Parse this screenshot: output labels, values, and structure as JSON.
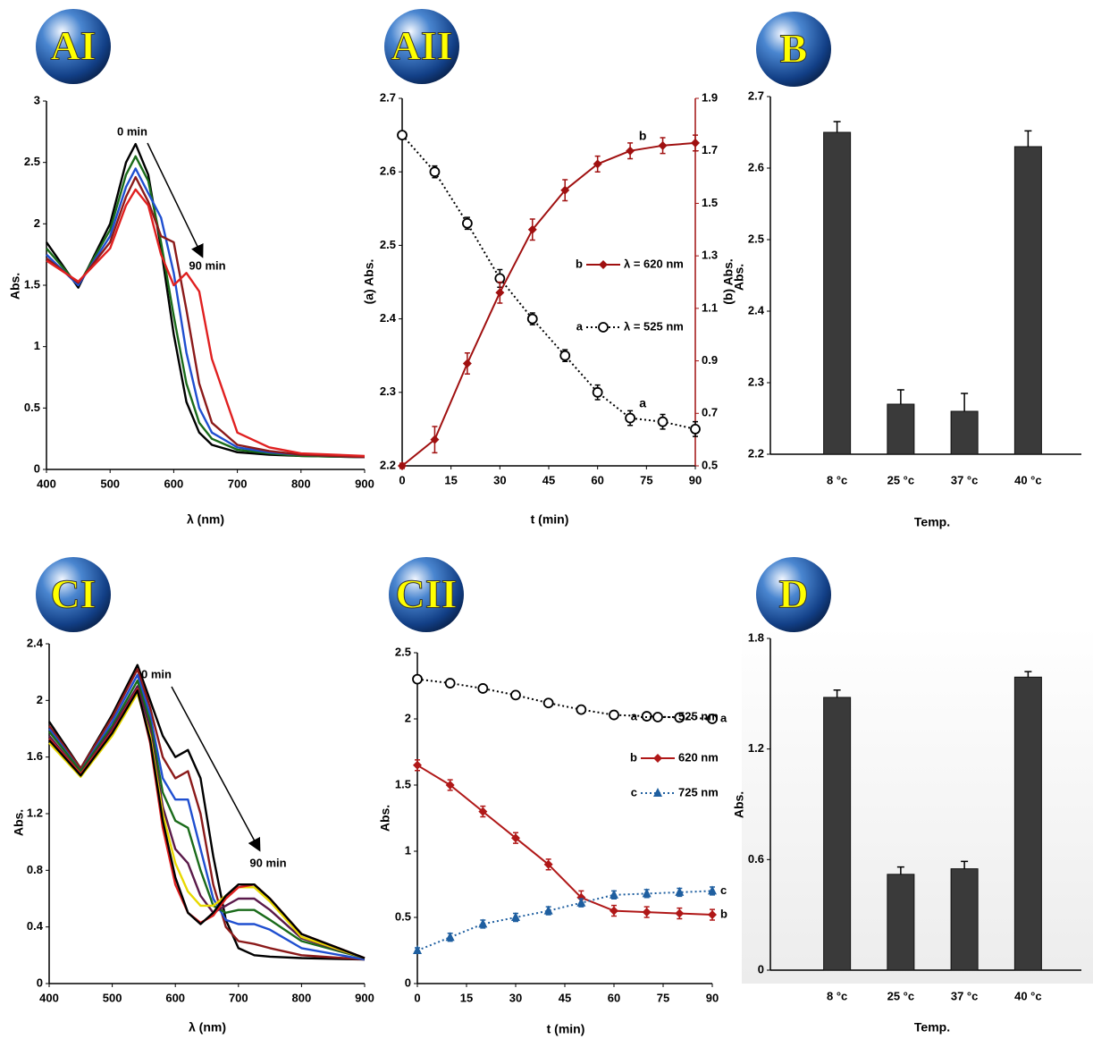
{
  "chart_data": [
    {
      "type": "line",
      "panel": "AI",
      "xlabel": "λ (nm)",
      "ylabel": "Abs.",
      "annotations": [
        "0 min",
        "90 min"
      ],
      "x": [
        400,
        450,
        500,
        525,
        540,
        560,
        580,
        600,
        620,
        640,
        660,
        700,
        750,
        800,
        900
      ],
      "series": [
        {
          "color": "#000000",
          "values": [
            1.85,
            1.48,
            2.0,
            2.5,
            2.65,
            2.4,
            1.8,
            1.1,
            0.55,
            0.3,
            0.2,
            0.14,
            0.12,
            0.11,
            0.1
          ]
        },
        {
          "color": "#1a6b1a",
          "values": [
            1.8,
            1.5,
            1.95,
            2.4,
            2.55,
            2.35,
            1.85,
            1.25,
            0.7,
            0.38,
            0.25,
            0.16,
            0.13,
            0.11,
            0.1
          ]
        },
        {
          "color": "#1f4fd0",
          "values": [
            1.75,
            1.5,
            1.9,
            2.3,
            2.45,
            2.25,
            2.05,
            1.6,
            0.95,
            0.5,
            0.3,
            0.18,
            0.14,
            0.12,
            0.1
          ]
        },
        {
          "color": "#8b1a1a",
          "values": [
            1.72,
            1.52,
            1.85,
            2.22,
            2.38,
            2.18,
            1.9,
            1.85,
            1.3,
            0.7,
            0.38,
            0.2,
            0.15,
            0.12,
            0.1
          ]
        },
        {
          "color": "#e02020",
          "values": [
            1.7,
            1.53,
            1.8,
            2.15,
            2.28,
            2.15,
            1.75,
            1.5,
            1.6,
            1.45,
            0.9,
            0.3,
            0.18,
            0.13,
            0.11
          ]
        }
      ],
      "xlim": [
        400,
        900
      ],
      "xticks": [
        400,
        500,
        600,
        700,
        800,
        900
      ],
      "ylim": [
        0,
        3
      ],
      "yticks": [
        0,
        0.5,
        1,
        1.5,
        2,
        2.5,
        3
      ]
    },
    {
      "type": "line",
      "panel": "AII",
      "xlabel": "t (min)",
      "ylabel": "(a) Abs.",
      "y2label": "(b) Abs.",
      "x": [
        0,
        10,
        20,
        30,
        40,
        50,
        60,
        70,
        80,
        90
      ],
      "series": [
        {
          "label": "a",
          "name": "λ = 525 nm",
          "color": "#000000",
          "marker": "circle-open",
          "linestyle": "dotted",
          "values": [
            2.65,
            2.6,
            2.53,
            2.455,
            2.4,
            2.35,
            2.3,
            2.265,
            2.26,
            2.25
          ],
          "errors": [
            0.005,
            0.008,
            0.008,
            0.012,
            0.008,
            0.008,
            0.01,
            0.01,
            0.01,
            0.01
          ]
        },
        {
          "label": "b",
          "name": "λ = 620 nm",
          "color": "#a01010",
          "marker": "diamond",
          "linestyle": "solid",
          "axis": "y2",
          "values": [
            0.5,
            0.6,
            0.89,
            1.16,
            1.4,
            1.55,
            1.65,
            1.7,
            1.72,
            1.73
          ],
          "errors": [
            0.01,
            0.05,
            0.04,
            0.04,
            0.04,
            0.04,
            0.03,
            0.03,
            0.03,
            0.03
          ]
        }
      ],
      "xlim": [
        0,
        90
      ],
      "xticks": [
        0,
        15,
        30,
        45,
        60,
        75,
        90
      ],
      "ylim": [
        2.2,
        2.7
      ],
      "yticks": [
        2.2,
        2.3,
        2.4,
        2.5,
        2.6,
        2.7
      ],
      "y2lim": [
        0.5,
        1.9
      ],
      "y2ticks": [
        0.5,
        0.7,
        0.9,
        1.1,
        1.3,
        1.5,
        1.7,
        1.9
      ]
    },
    {
      "type": "bar",
      "panel": "B",
      "xlabel": "Temp.",
      "ylabel": "Abs.",
      "categories": [
        "8 °c",
        "25 °c",
        "37 °c",
        "40 °c"
      ],
      "values": [
        2.65,
        2.27,
        2.26,
        2.63
      ],
      "errors": [
        0.015,
        0.02,
        0.025,
        0.022
      ],
      "color": "#3a3a3a",
      "ylim": [
        2.2,
        2.7
      ],
      "yticks": [
        2.2,
        2.3,
        2.4,
        2.5,
        2.6,
        2.7
      ]
    },
    {
      "type": "line",
      "panel": "CI",
      "xlabel": "λ (nm)",
      "ylabel": "Abs.",
      "annotations": [
        "0 min",
        "90 min"
      ],
      "x": [
        400,
        450,
        500,
        540,
        560,
        580,
        600,
        620,
        640,
        660,
        680,
        700,
        725,
        750,
        800,
        900
      ],
      "series": [
        {
          "color": "#000000",
          "values": [
            1.85,
            1.52,
            1.9,
            2.25,
            2.0,
            1.75,
            1.6,
            1.65,
            1.45,
            0.9,
            0.45,
            0.25,
            0.2,
            0.19,
            0.18,
            0.17
          ]
        },
        {
          "color": "#8b1a1a",
          "values": [
            1.82,
            1.52,
            1.88,
            2.22,
            1.95,
            1.6,
            1.45,
            1.5,
            1.2,
            0.7,
            0.4,
            0.3,
            0.28,
            0.25,
            0.2,
            0.17
          ]
        },
        {
          "color": "#1f4fd0",
          "values": [
            1.8,
            1.5,
            1.85,
            2.18,
            1.9,
            1.45,
            1.3,
            1.3,
            0.95,
            0.6,
            0.45,
            0.42,
            0.42,
            0.38,
            0.25,
            0.17
          ]
        },
        {
          "color": "#1a6b1a",
          "values": [
            1.78,
            1.5,
            1.82,
            2.14,
            1.85,
            1.35,
            1.15,
            1.1,
            0.8,
            0.55,
            0.5,
            0.52,
            0.52,
            0.45,
            0.3,
            0.18
          ]
        },
        {
          "color": "#5a1a4a",
          "values": [
            1.75,
            1.48,
            1.8,
            2.1,
            1.8,
            1.25,
            0.95,
            0.85,
            0.62,
            0.5,
            0.55,
            0.6,
            0.6,
            0.52,
            0.32,
            0.18
          ]
        },
        {
          "color": "#e8d800",
          "values": [
            1.7,
            1.46,
            1.75,
            2.05,
            1.75,
            1.2,
            0.85,
            0.65,
            0.55,
            0.55,
            0.62,
            0.68,
            0.68,
            0.58,
            0.33,
            0.18
          ]
        },
        {
          "color": "#e02020",
          "values": [
            1.73,
            1.48,
            1.78,
            2.08,
            1.7,
            1.1,
            0.7,
            0.5,
            0.43,
            0.48,
            0.6,
            0.68,
            0.7,
            0.6,
            0.35,
            0.18
          ]
        },
        {
          "color": "#000000",
          "values": [
            1.72,
            1.47,
            1.77,
            2.07,
            1.72,
            1.15,
            0.75,
            0.5,
            0.42,
            0.5,
            0.62,
            0.7,
            0.7,
            0.6,
            0.35,
            0.18
          ]
        }
      ],
      "xlim": [
        400,
        900
      ],
      "xticks": [
        400,
        500,
        600,
        700,
        800,
        900
      ],
      "ylim": [
        0,
        2.4
      ],
      "yticks": [
        0,
        0.4,
        0.8,
        1.2,
        1.6,
        2,
        2.4
      ]
    },
    {
      "type": "line",
      "panel": "CII",
      "xlabel": "t (min)",
      "ylabel": "Abs.",
      "x": [
        0,
        10,
        20,
        30,
        40,
        50,
        60,
        70,
        80,
        90
      ],
      "series": [
        {
          "label": "a",
          "name": "525 nm",
          "color": "#000000",
          "marker": "circle-open",
          "linestyle": "dotted",
          "values": [
            2.3,
            2.27,
            2.23,
            2.18,
            2.12,
            2.07,
            2.03,
            2.02,
            2.01,
            2.0
          ],
          "errors": [
            0.02,
            0.02,
            0.02,
            0.02,
            0.02,
            0.02,
            0.02,
            0.02,
            0.02,
            0.02
          ]
        },
        {
          "label": "b",
          "name": "620 nm",
          "color": "#b01818",
          "marker": "diamond",
          "linestyle": "solid",
          "values": [
            1.65,
            1.5,
            1.3,
            1.1,
            0.9,
            0.65,
            0.55,
            0.54,
            0.53,
            0.52
          ],
          "errors": [
            0.04,
            0.04,
            0.04,
            0.04,
            0.04,
            0.05,
            0.04,
            0.04,
            0.04,
            0.04
          ]
        },
        {
          "label": "c",
          "name": "725 nm",
          "color": "#1f5fa0",
          "marker": "triangle",
          "linestyle": "dotted",
          "values": [
            0.25,
            0.35,
            0.45,
            0.5,
            0.55,
            0.61,
            0.67,
            0.68,
            0.69,
            0.7
          ],
          "errors": [
            0.02,
            0.03,
            0.03,
            0.03,
            0.03,
            0.03,
            0.03,
            0.03,
            0.03,
            0.03
          ]
        }
      ],
      "xlim": [
        0,
        90
      ],
      "xticks": [
        0,
        15,
        30,
        45,
        60,
        75,
        90
      ],
      "ylim": [
        0,
        2.5
      ],
      "yticks": [
        0,
        0.5,
        1,
        1.5,
        2,
        2.5
      ]
    },
    {
      "type": "bar",
      "panel": "D",
      "xlabel": "Temp.",
      "ylabel": "Abs.",
      "categories": [
        "8 °c",
        "25 °c",
        "37 °c",
        "40 °c"
      ],
      "values": [
        1.48,
        0.52,
        0.55,
        1.59
      ],
      "errors": [
        0.04,
        0.04,
        0.04,
        0.03
      ],
      "color": "#3a3a3a",
      "ylim": [
        0,
        1.8
      ],
      "yticks": [
        0,
        0.6,
        1.2,
        1.8
      ]
    }
  ]
}
